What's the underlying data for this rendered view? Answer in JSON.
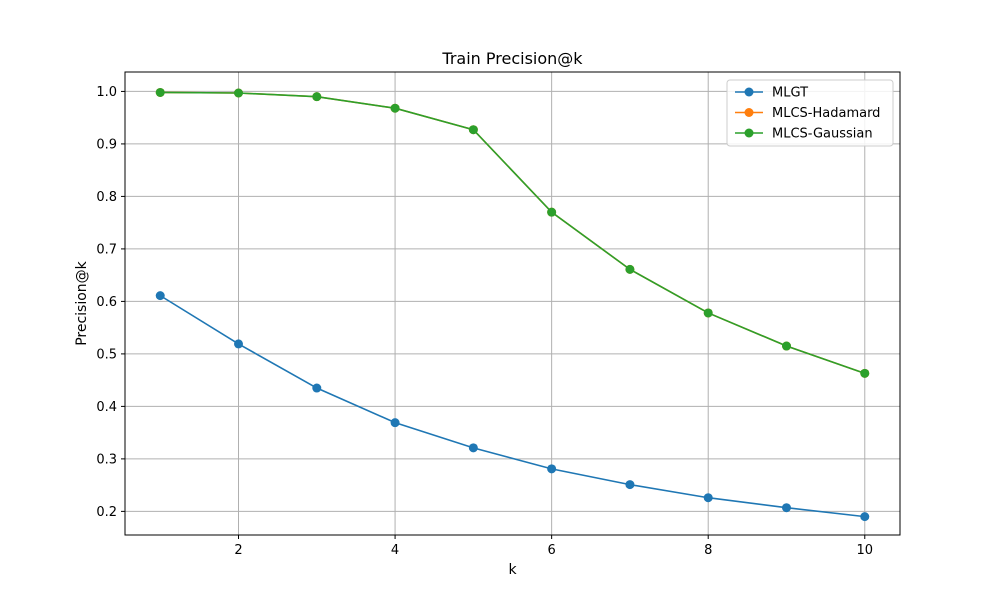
{
  "chart_data": {
    "type": "line",
    "title": "Train Precision@k",
    "xlabel": "k",
    "ylabel": "Precision@k",
    "x": [
      1,
      2,
      3,
      4,
      5,
      6,
      7,
      8,
      9,
      10
    ],
    "xlim": [
      0.55,
      10.45
    ],
    "ylim": [
      0.155,
      1.037
    ],
    "xticks": [
      2,
      4,
      6,
      8,
      10
    ],
    "yticks": [
      0.2,
      0.3,
      0.4,
      0.5,
      0.6,
      0.7,
      0.8,
      0.9,
      1.0
    ],
    "xtick_labels": [
      "2",
      "4",
      "6",
      "8",
      "10"
    ],
    "ytick_labels": [
      "0.2",
      "0.3",
      "0.4",
      "0.5",
      "0.6",
      "0.7",
      "0.8",
      "0.9",
      "1.0"
    ],
    "grid": true,
    "legend_position": "top-right",
    "series": [
      {
        "name": "MLGT",
        "color": "#1f77b4",
        "values": [
          0.611,
          0.519,
          0.435,
          0.369,
          0.321,
          0.281,
          0.251,
          0.226,
          0.207,
          0.19
        ]
      },
      {
        "name": "MLCS-Hadamard",
        "color": "#ff7f0e",
        "values": [
          0.998,
          0.997,
          0.99,
          0.968,
          0.927,
          0.77,
          0.661,
          0.578,
          0.515,
          0.463
        ]
      },
      {
        "name": "MLCS-Gaussian",
        "color": "#2ca02c",
        "values": [
          0.998,
          0.997,
          0.99,
          0.968,
          0.927,
          0.77,
          0.661,
          0.578,
          0.515,
          0.463
        ]
      }
    ]
  }
}
